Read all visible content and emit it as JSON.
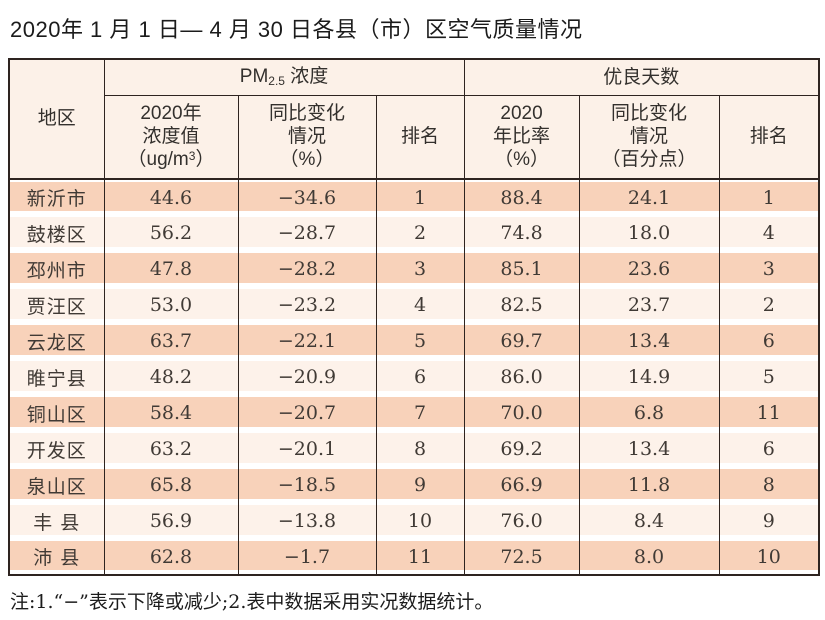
{
  "page": {
    "title": "2020年 1 月 1 日— 4 月 30 日各县（市）区空气质量情况",
    "note": "注:1.“−”表示下降或减少;2.表中数据采用实况数据统计。"
  },
  "colors": {
    "outer_border": "#2e2420",
    "header_bg": "#fcf1e8",
    "row_odd_bg": "#f8d2ba",
    "row_even_bg": "#fdf2ea",
    "cell_text": "#403a35"
  },
  "chart_data": {
    "type": "table",
    "title": "2020年 1 月 1 日— 4 月 30 日各县（市）区空气质量情况",
    "header": {
      "region": "地区",
      "group_pm": {
        "prefix": "PM",
        "sub": "2.5",
        "suffix": " 浓度"
      },
      "group_good": "优良天数",
      "pm_value_line1": "2020年",
      "pm_value_line2": "浓度值",
      "pm_value_unit": {
        "open": "（ug/m",
        "sup": "3",
        "close": "）"
      },
      "pm_change_line1": "同比变化",
      "pm_change_line2": "情况",
      "pm_change_line3": "（%）",
      "pm_rank": "排名",
      "good_ratio_line1": "2020",
      "good_ratio_line2": "年比率",
      "good_ratio_line3": "（%）",
      "good_change_line1": "同比变化",
      "good_change_line2": "情况",
      "good_change_line3": "（百分点）",
      "good_rank": "排名"
    },
    "rows": [
      {
        "region": "新沂市",
        "pm_value": "44.6",
        "pm_change": "−34.6",
        "pm_rank": "1",
        "good_ratio": "88.4",
        "good_change": "24.1",
        "good_rank": "1"
      },
      {
        "region": "鼓楼区",
        "pm_value": "56.2",
        "pm_change": "−28.7",
        "pm_rank": "2",
        "good_ratio": "74.8",
        "good_change": "18.0",
        "good_rank": "4"
      },
      {
        "region": "邳州市",
        "pm_value": "47.8",
        "pm_change": "−28.2",
        "pm_rank": "3",
        "good_ratio": "85.1",
        "good_change": "23.6",
        "good_rank": "3"
      },
      {
        "region": "贾汪区",
        "pm_value": "53.0",
        "pm_change": "−23.2",
        "pm_rank": "4",
        "good_ratio": "82.5",
        "good_change": "23.7",
        "good_rank": "2"
      },
      {
        "region": "云龙区",
        "pm_value": "63.7",
        "pm_change": "−22.1",
        "pm_rank": "5",
        "good_ratio": "69.7",
        "good_change": "13.4",
        "good_rank": "6"
      },
      {
        "region": "睢宁县",
        "pm_value": "48.2",
        "pm_change": "−20.9",
        "pm_rank": "6",
        "good_ratio": "86.0",
        "good_change": "14.9",
        "good_rank": "5"
      },
      {
        "region": "铜山区",
        "pm_value": "58.4",
        "pm_change": "−20.7",
        "pm_rank": "7",
        "good_ratio": "70.0",
        "good_change": "6.8",
        "good_rank": "11"
      },
      {
        "region": "开发区",
        "pm_value": "63.2",
        "pm_change": "−20.1",
        "pm_rank": "8",
        "good_ratio": "69.2",
        "good_change": "13.4",
        "good_rank": "6"
      },
      {
        "region": "泉山区",
        "pm_value": "65.8",
        "pm_change": "−18.5",
        "pm_rank": "9",
        "good_ratio": "66.9",
        "good_change": "11.8",
        "good_rank": "8"
      },
      {
        "region": "丰 县",
        "pm_value": "56.9",
        "pm_change": "−13.8",
        "pm_rank": "10",
        "good_ratio": "76.0",
        "good_change": "8.4",
        "good_rank": "9"
      },
      {
        "region": "沛 县",
        "pm_value": "62.8",
        "pm_change": "−1.7",
        "pm_rank": "11",
        "good_ratio": "72.5",
        "good_change": "8.0",
        "good_rank": "10"
      }
    ]
  }
}
